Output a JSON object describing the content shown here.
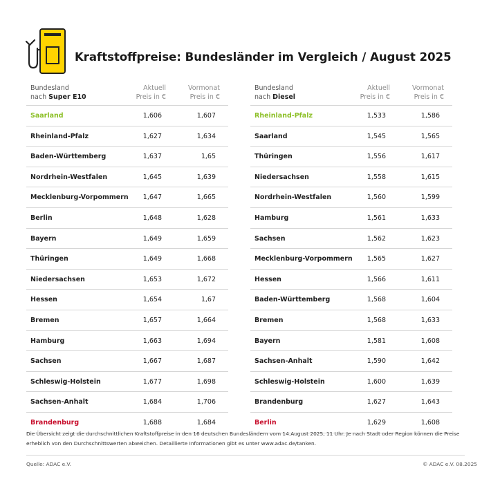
{
  "title": "Kraftstoffpreise: Bundesländer im Vergleich / August 2025",
  "colors": {
    "accent_yellow": "#ffd400",
    "best": "#8cbf26",
    "worst": "#c8102e"
  },
  "logo_icon": "fuel-pump-icon",
  "e10": {
    "header": {
      "state_line1": "Bundesland",
      "state_line2_prefix": "nach ",
      "fuel": "Super E10",
      "current_line1": "Aktuell",
      "current_line2": "Preis in €",
      "prev_line1": "Vormonat",
      "prev_line2": "Preis in €"
    },
    "rows": [
      {
        "name": "Saarland",
        "current": "1,606",
        "previous": "1,607"
      },
      {
        "name": "Rheinland-Pfalz",
        "current": "1,627",
        "previous": "1,634"
      },
      {
        "name": "Baden-Württemberg",
        "current": "1,637",
        "previous": "1,65"
      },
      {
        "name": "Nordrhein-Westfalen",
        "current": "1,645",
        "previous": "1,639"
      },
      {
        "name": "Mecklenburg-Vorpommern",
        "current": "1,647",
        "previous": "1,665"
      },
      {
        "name": "Berlin",
        "current": "1,648",
        "previous": "1,628"
      },
      {
        "name": "Bayern",
        "current": "1,649",
        "previous": "1,659"
      },
      {
        "name": "Thüringen",
        "current": "1,649",
        "previous": "1,668"
      },
      {
        "name": "Niedersachsen",
        "current": "1,653",
        "previous": "1,672"
      },
      {
        "name": "Hessen",
        "current": "1,654",
        "previous": "1,67"
      },
      {
        "name": "Bremen",
        "current": "1,657",
        "previous": "1,664"
      },
      {
        "name": "Hamburg",
        "current": "1,663",
        "previous": "1,694"
      },
      {
        "name": "Sachsen",
        "current": "1,667",
        "previous": "1,687"
      },
      {
        "name": "Schleswig-Holstein",
        "current": "1,677",
        "previous": "1,698"
      },
      {
        "name": "Sachsen-Anhalt",
        "current": "1,684",
        "previous": "1,706"
      },
      {
        "name": "Brandenburg",
        "current": "1,688",
        "previous": "1,684"
      }
    ]
  },
  "diesel": {
    "header": {
      "state_line1": "Bundesland",
      "state_line2_prefix": "nach ",
      "fuel": "Diesel",
      "current_line1": "Aktuell",
      "current_line2": "Preis in €",
      "prev_line1": "Vormonat",
      "prev_line2": "Preis in €"
    },
    "rows": [
      {
        "name": "Rheinland-Pfalz",
        "current": "1,533",
        "previous": "1,586"
      },
      {
        "name": "Saarland",
        "current": "1,545",
        "previous": "1,565"
      },
      {
        "name": "Thüringen",
        "current": "1,556",
        "previous": "1,617"
      },
      {
        "name": "Niedersachsen",
        "current": "1,558",
        "previous": "1,615"
      },
      {
        "name": "Nordrhein-Westfalen",
        "current": "1,560",
        "previous": "1,599"
      },
      {
        "name": "Hamburg",
        "current": "1,561",
        "previous": "1,633"
      },
      {
        "name": "Sachsen",
        "current": "1,562",
        "previous": "1,623"
      },
      {
        "name": "Mecklenburg-Vorpommern",
        "current": "1,565",
        "previous": "1,627"
      },
      {
        "name": "Hessen",
        "current": "1,566",
        "previous": "1,611"
      },
      {
        "name": "Baden-Württemberg",
        "current": "1,568",
        "previous": "1,604"
      },
      {
        "name": "Bremen",
        "current": "1,568",
        "previous": "1,633"
      },
      {
        "name": "Bayern",
        "current": "1,581",
        "previous": "1,608"
      },
      {
        "name": "Sachsen-Anhalt",
        "current": "1,590",
        "previous": "1,642"
      },
      {
        "name": "Schleswig-Holstein",
        "current": "1,600",
        "previous": "1,639"
      },
      {
        "name": "Brandenburg",
        "current": "1,627",
        "previous": "1,643"
      },
      {
        "name": "Berlin",
        "current": "1,629",
        "previous": "1,608"
      }
    ]
  },
  "footnote": "Die Übersicht zeigt die durchschnittlichen Kraftstoffpreise in den 16 deutschen Bundesländern vom 14.August 2025, 11 Uhr. Je nach Stadt oder Region können die Preise erheblich von den Durchschnittswerten abweichen. Detaillierte Informationen gibt es unter www.adac.de/tanken.",
  "source": "Quelle: ADAC e.V.",
  "copyright": "© ADAC e.V. 08.2025"
}
